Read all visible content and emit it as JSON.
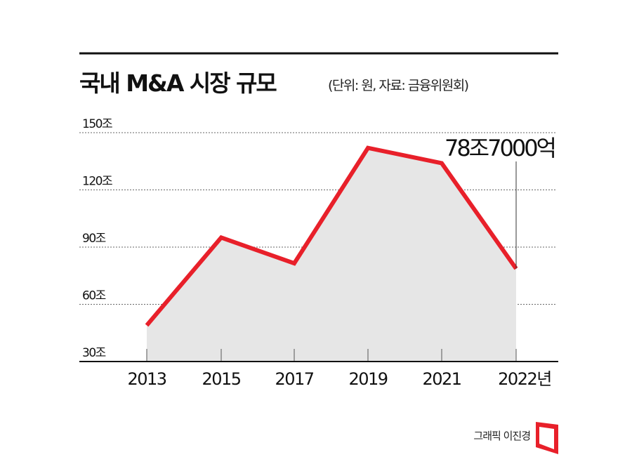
{
  "chart_data": {
    "type": "line",
    "title": "국내 M&A 시장 규모",
    "subtitle": "(단위: 원, 자료: 금융위원회)",
    "categories": [
      "2013",
      "2015",
      "2017",
      "2019",
      "2021",
      "2022년"
    ],
    "values": [
      49,
      95,
      81.5,
      142,
      134,
      78.7
    ],
    "unit": "조",
    "yticks": [
      "30조",
      "60조",
      "90조",
      "120조",
      "150조"
    ],
    "ylim": [
      30,
      150
    ],
    "grid": "horizontal dotted",
    "annotation": {
      "label": "78조7000억",
      "category": "2022년"
    },
    "colors": {
      "line": "#e8202a",
      "area": "#e6e6e6",
      "grid": "#666666"
    }
  },
  "credit": "그래픽 이진경",
  "logo_color": "#e8202a"
}
